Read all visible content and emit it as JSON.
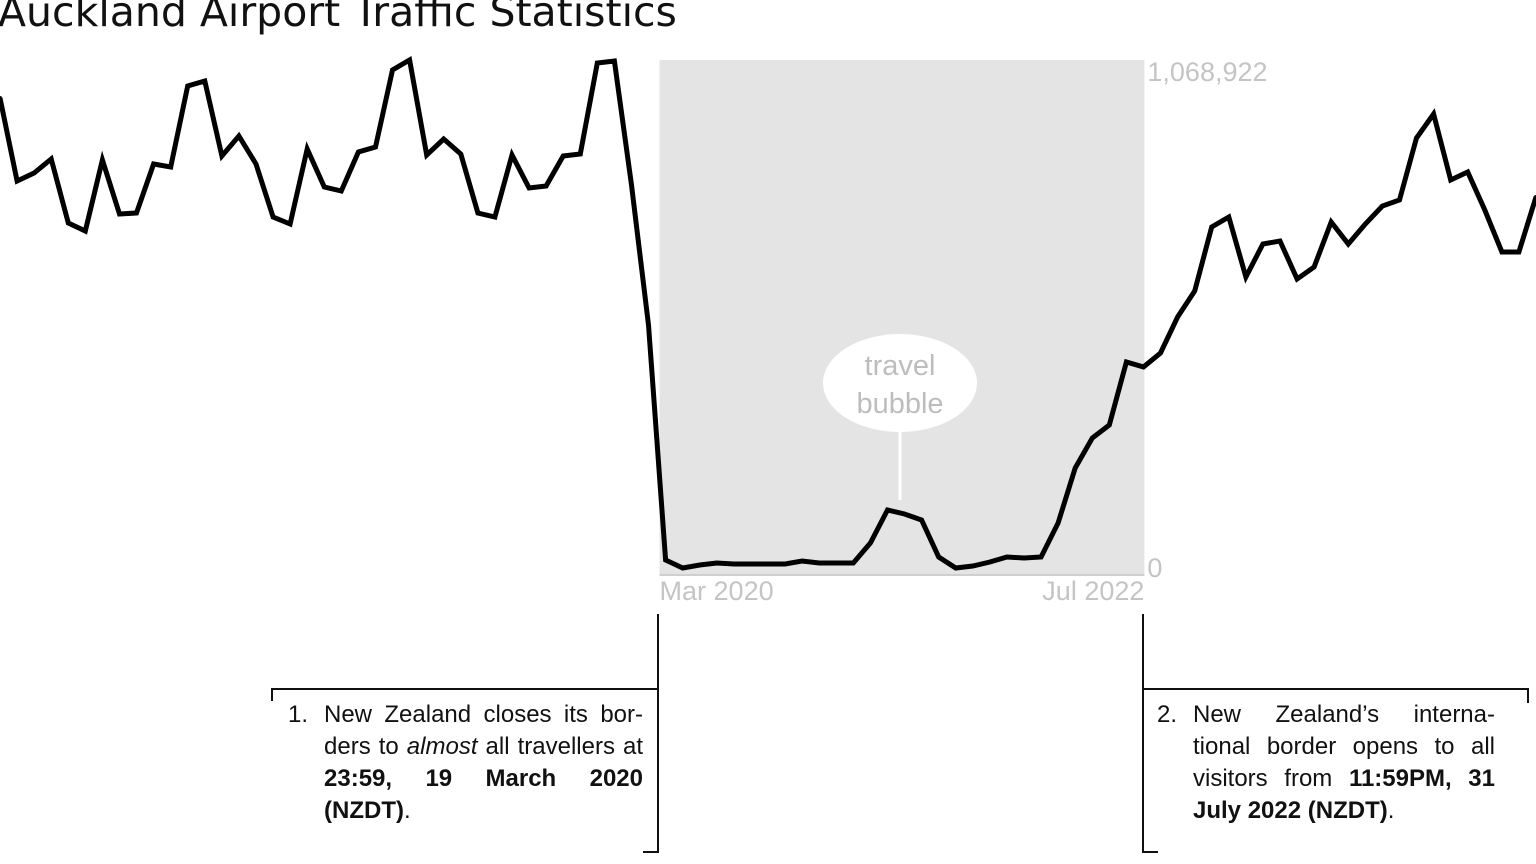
{
  "chart_data": {
    "type": "line",
    "title": "Auckland Airport Traffic Statistics",
    "xlabel": "",
    "ylabel": "",
    "ylim": [
      0,
      1068922
    ],
    "grid": false,
    "legend": "none",
    "line_color": "#000000",
    "highlight": {
      "from": "Mar 2020",
      "to": "Jul 2022",
      "color": "#e4e4e4"
    },
    "y_tick_labels": [
      "1,068,922",
      "0"
    ],
    "x_tick_labels": [
      "Mar 2020",
      "Jul 2022"
    ],
    "annotation_bubble": {
      "lines": [
        "travel",
        "bubble"
      ],
      "at": "2021-05"
    },
    "x": [
      "2017-01",
      "2017-02",
      "2017-03",
      "2017-04",
      "2017-05",
      "2017-06",
      "2017-07",
      "2017-08",
      "2017-09",
      "2017-10",
      "2017-11",
      "2017-12",
      "2018-01",
      "2018-02",
      "2018-03",
      "2018-04",
      "2018-05",
      "2018-06",
      "2018-07",
      "2018-08",
      "2018-09",
      "2018-10",
      "2018-11",
      "2018-12",
      "2019-01",
      "2019-02",
      "2019-03",
      "2019-04",
      "2019-05",
      "2019-06",
      "2019-07",
      "2019-08",
      "2019-09",
      "2019-10",
      "2019-11",
      "2019-12",
      "2020-01",
      "2020-02",
      "2020-03",
      "2020-04",
      "2020-05",
      "2020-06",
      "2020-07",
      "2020-08",
      "2020-09",
      "2020-10",
      "2020-11",
      "2020-12",
      "2021-01",
      "2021-02",
      "2021-03",
      "2021-04",
      "2021-05",
      "2021-06",
      "2021-07",
      "2021-08",
      "2021-09",
      "2021-10",
      "2021-11",
      "2021-12",
      "2022-01",
      "2022-02",
      "2022-03",
      "2022-04",
      "2022-05",
      "2022-06",
      "2022-07",
      "2022-08",
      "2022-09",
      "2022-10",
      "2022-11",
      "2022-12",
      "2023-01",
      "2023-02",
      "2023-03",
      "2023-04",
      "2023-05",
      "2023-06",
      "2023-07",
      "2023-08",
      "2023-09",
      "2023-10",
      "2023-11",
      "2023-12",
      "2024-01",
      "2024-02",
      "2024-03",
      "2024-04",
      "2024-05",
      "2024-06",
      "2024-07"
    ],
    "values": [
      990000,
      817800,
      834400,
      863400,
      730600,
      714000,
      861400,
      749300,
      751400,
      853100,
      846800,
      1015000,
      1025300,
      869700,
      911200,
      853100,
      743100,
      728500,
      884200,
      805300,
      797000,
      878000,
      888400,
      1048200,
      1068922,
      871800,
      905000,
      873800,
      751400,
      743100,
      871800,
      803300,
      807400,
      869700,
      873800,
      1062700,
      1066800,
      809500,
      518900,
      31100,
      14500,
      20800,
      24900,
      22800,
      22800,
      22800,
      22800,
      29100,
      24900,
      24900,
      24900,
      66400,
      134900,
      126600,
      114200,
      37400,
      14500,
      18700,
      27000,
      37400,
      35300,
      37400,
      107900,
      222100,
      284400,
      311300,
      442100,
      431700,
      460800,
      535500,
      589500,
      722300,
      743100,
      618500,
      687000,
      693300,
      614400,
      639300,
      732700,
      687000,
      728500,
      765900,
      778400,
      907000,
      956900,
      819900,
      836500,
      757600,
      670400,
      670400,
      784600
    ]
  },
  "annotations": [
    {
      "number": "1.",
      "parts": [
        "New Zealand closes its bor-ders to ",
        "almost",
        " all travellers at ",
        "23:59, 19 March 2020 (NZDT)",
        "."
      ]
    },
    {
      "number": "2.",
      "parts": [
        "New Zealand’s interna-tional border opens to all visitors from ",
        "11:59PM, 31 July 2022 (NZDT)",
        "."
      ]
    }
  ]
}
